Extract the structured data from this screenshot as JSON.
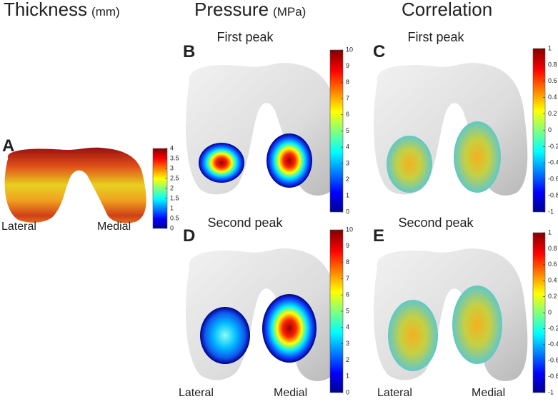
{
  "headers": [
    {
      "title": "Thickness",
      "unit": "(mm)"
    },
    {
      "title": "Pressure",
      "unit": "(MPa)"
    },
    {
      "title": "Correlation"
    }
  ],
  "panels": [
    {
      "letter": "A",
      "labels": [
        "Lateral",
        "Medial"
      ],
      "colorbar": {
        "lim": [
          0,
          4
        ],
        "ticks": [
          0,
          0.5,
          1,
          1.5,
          2,
          2.5,
          3,
          3.5,
          4
        ]
      }
    },
    {
      "letter": "B",
      "subtitle": "First peak",
      "colorbar": {
        "lim": [
          0,
          10
        ],
        "ticks": [
          0,
          1,
          2,
          3,
          4,
          5,
          6,
          7,
          8,
          9,
          10
        ]
      }
    },
    {
      "letter": "C",
      "subtitle": "First peak",
      "colorbar": {
        "lim": [
          -1,
          1
        ],
        "ticks": [
          -1,
          -0.8,
          -0.6,
          -0.4,
          -0.2,
          0,
          0.2,
          0.4,
          0.6,
          0.8,
          1
        ]
      }
    },
    {
      "letter": "D",
      "subtitle": "Second peak",
      "labels": [
        "Lateral",
        "Medial"
      ],
      "colorbar": {
        "lim": [
          0,
          10
        ],
        "ticks": [
          0,
          1,
          2,
          3,
          4,
          5,
          6,
          7,
          8,
          9,
          10
        ]
      }
    },
    {
      "letter": "E",
      "subtitle": "Second peak",
      "labels": [
        "Lateral",
        "Medial"
      ],
      "colorbar": {
        "lim": [
          -1,
          1
        ],
        "ticks": [
          -1,
          -0.8,
          -0.6,
          -0.4,
          -0.2,
          0,
          0.2,
          0.4,
          0.6,
          0.8,
          1
        ]
      }
    }
  ]
}
